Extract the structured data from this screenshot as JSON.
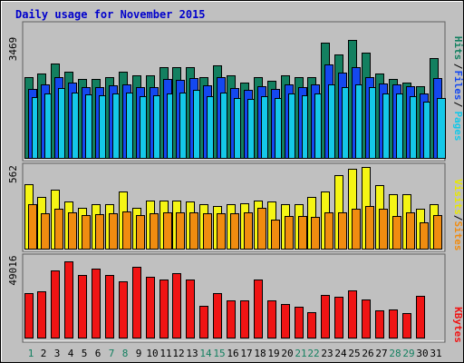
{
  "chart_data": {
    "type": "bar",
    "title": "Daily usage for November 2015",
    "days": [
      "1",
      "2",
      "3",
      "4",
      "5",
      "6",
      "7",
      "8",
      "9",
      "10",
      "11",
      "12",
      "13",
      "14",
      "15",
      "16",
      "17",
      "18",
      "19",
      "20",
      "21",
      "22",
      "23",
      "24",
      "25",
      "26",
      "27",
      "28",
      "29",
      "30",
      "31"
    ],
    "weekend_days": [
      1,
      7,
      8,
      14,
      15,
      21,
      22,
      28,
      29
    ],
    "panels": [
      {
        "name": "hits-files-pages",
        "ymax_label": "3469",
        "ymax": 3469,
        "side_label": [
          "Pages",
          "Files",
          "Hits"
        ],
        "series": [
          {
            "name": "Hits",
            "color": "#138060",
            "values": [
              2150,
              2250,
              2500,
              2300,
              2100,
              2100,
              2150,
              2300,
              2200,
              2200,
              2400,
              2400,
              2400,
              2150,
              2450,
              2200,
              2000,
              2150,
              2050,
              2200,
              2150,
              2150,
              3050,
              2750,
              3130,
              2800,
              2250,
              2100,
              2000,
              1900,
              2650
            ]
          },
          {
            "name": "Files",
            "color": "#1448f0",
            "values": [
              1820,
              1950,
              2150,
              2000,
              1880,
              1870,
              1920,
              1950,
              1890,
              1880,
              2100,
              2080,
              2130,
              1920,
              2150,
              1850,
              1800,
              1900,
              1820,
              1950,
              1880,
              1950,
              2470,
              2260,
              2420,
              2150,
              1980,
              1950,
              1900,
              1700,
              2130
            ]
          },
          {
            "name": "Pages",
            "color": "#14c8e8",
            "values": [
              1620,
              1700,
              1860,
              1730,
              1680,
              1660,
              1720,
              1730,
              1650,
              1660,
              1720,
              1740,
              1810,
              1640,
              1730,
              1600,
              1560,
              1640,
              1600,
              1700,
              1660,
              1710,
              1950,
              1880,
              1940,
              1870,
              1720,
              1700,
              1650,
              1500,
              1600
            ]
          }
        ]
      },
      {
        "name": "visits-sites",
        "ymax_label": "562",
        "ymax": 562,
        "side_label": [
          "Sites",
          "Visits"
        ],
        "series": [
          {
            "name": "Visits",
            "color": "#f5f514",
            "values": [
              440,
              350,
              400,
              320,
              280,
              300,
              300,
              390,
              280,
              330,
              330,
              330,
              320,
              300,
              290,
              300,
              310,
              330,
              320,
              300,
              300,
              350,
              390,
              500,
              545,
              555,
              430,
              370,
              370,
              270,
              300
            ]
          },
          {
            "name": "Sites",
            "color": "#f08c10",
            "values": [
              300,
              240,
              270,
              250,
              230,
              235,
              240,
              255,
              230,
              240,
              250,
              250,
              250,
              240,
              240,
              240,
              250,
              280,
              200,
              225,
              220,
              215,
              250,
              250,
              270,
              290,
              270,
              220,
              245,
              180,
              230
            ]
          }
        ]
      },
      {
        "name": "kbytes",
        "ymax_label": "49016",
        "ymax": 49016,
        "side_label": [
          "KBytes"
        ],
        "series": [
          {
            "name": "KBytes",
            "color": "#f01414",
            "values": [
              27000,
              28000,
              41000,
              46000,
              38000,
              42000,
              38000,
              34000,
              43000,
              37000,
              35000,
              39000,
              35000,
              19500,
              27000,
              22500,
              22500,
              35500,
              22500,
              20500,
              19000,
              15500,
              26000,
              25000,
              28500,
              23000,
              16500,
              17000,
              14800,
              25500,
              0
            ]
          }
        ]
      }
    ]
  }
}
